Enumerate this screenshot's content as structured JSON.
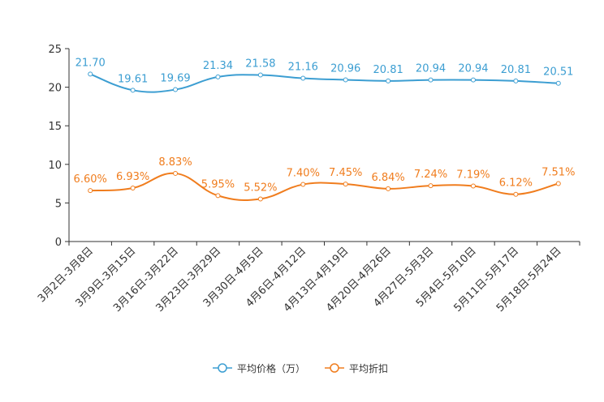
{
  "chart_data": {
    "type": "line",
    "title": "",
    "xlabel": "",
    "ylabel": "",
    "ylim": [
      0,
      25
    ],
    "yticks": [
      "0",
      "5",
      "10",
      "15",
      "20",
      "25"
    ],
    "categories": [
      "3月2日-3月8日",
      "3月9日-3月15日",
      "3月16日-3月22日",
      "3月23日-3月29日",
      "3月30日-4月5日",
      "4月6日-4月12日",
      "4月13日-4月19日",
      "4月20日-4月26日",
      "4月27日-5月3日",
      "5月4日-5月10日",
      "5月11日-5月17日",
      "5月18日-5月24日"
    ],
    "series": [
      {
        "name": "平均价格（万）",
        "color": "#3c9ed2",
        "values": [
          21.7,
          19.61,
          19.69,
          21.34,
          21.58,
          21.16,
          20.96,
          20.81,
          20.94,
          20.94,
          20.81,
          20.51
        ],
        "labels": [
          "21.70",
          "19.61",
          "19.69",
          "21.34",
          "21.58",
          "21.16",
          "20.96",
          "20.81",
          "20.94",
          "20.94",
          "20.81",
          "20.51"
        ]
      },
      {
        "name": "平均折扣",
        "color": "#f07d1e",
        "values": [
          6.6,
          6.93,
          8.83,
          5.95,
          5.52,
          7.4,
          7.45,
          6.84,
          7.24,
          7.19,
          6.12,
          7.51
        ],
        "labels": [
          "6.60%",
          "6.93%",
          "8.83%",
          "5.95%",
          "5.52%",
          "7.40%",
          "7.45%",
          "6.84%",
          "7.24%",
          "7.19%",
          "6.12%",
          "7.51%"
        ]
      }
    ],
    "legend_position": "bottom-center",
    "grid": false
  }
}
